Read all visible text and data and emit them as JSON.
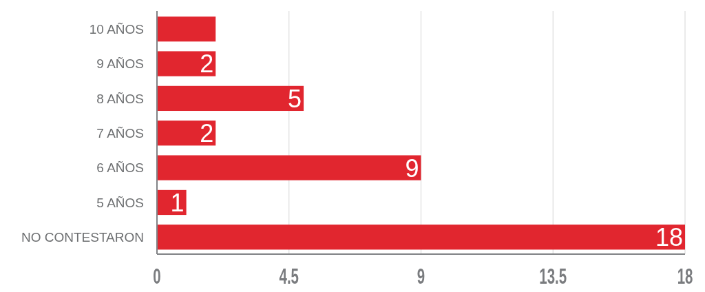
{
  "chart_data": {
    "type": "bar",
    "orientation": "horizontal",
    "categories": [
      "10 AÑOS",
      "9 AÑOS",
      "8 AÑOS",
      "7 AÑOS",
      "6 AÑOS",
      "5 AÑOS",
      "NO CONTESTARON"
    ],
    "values": [
      2,
      2,
      5,
      2,
      9,
      1,
      18
    ],
    "value_labels": [
      null,
      "2",
      "5",
      "2",
      "9",
      "1",
      "18"
    ],
    "color": "#e1262f",
    "xlim": [
      0,
      18
    ],
    "xticks": [
      0,
      4.5,
      9,
      13.5,
      18
    ],
    "grid": "x"
  }
}
